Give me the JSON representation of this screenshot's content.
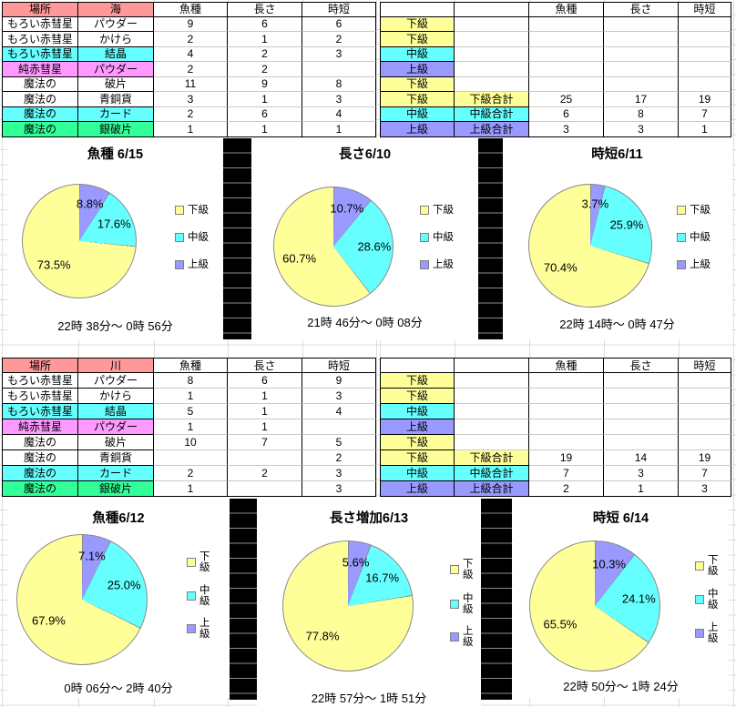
{
  "colors": {
    "pink": "#FF9999",
    "magenta": "#FF99FF",
    "cyan": "#66FFFF",
    "green": "#33FF99",
    "yellow": "#FFFF99",
    "purple": "#9999FF"
  },
  "tables": [
    {
      "place_header": "場所",
      "env_header": "海",
      "metric_headers": [
        "魚種",
        "長さ",
        "時短"
      ],
      "rows": [
        {
          "place": "もろい赤彗星",
          "item": "パウダー",
          "fill": null,
          "fish": "9",
          "len": "6",
          "time": "6",
          "grade": "下級",
          "grade_fill": "yellow"
        },
        {
          "place": "もろい赤彗星",
          "item": "かけら",
          "fill": null,
          "fish": "2",
          "len": "1",
          "time": "2",
          "grade": "下級",
          "grade_fill": "yellow"
        },
        {
          "place": "もろい赤彗星",
          "item": "結晶",
          "fill": "cyan",
          "fish": "4",
          "len": "2",
          "time": "3",
          "grade": "中級",
          "grade_fill": "cyan"
        },
        {
          "place": "純赤彗星",
          "item": "パウダー",
          "fill": "magenta",
          "fish": "2",
          "len": "2",
          "time": "",
          "grade": "上級",
          "grade_fill": "purple"
        },
        {
          "place": "魔法の",
          "item": "破片",
          "fill": null,
          "fish": "11",
          "len": "9",
          "time": "8",
          "grade": "下級",
          "grade_fill": "yellow"
        },
        {
          "place": "魔法の",
          "item": "青銅貨",
          "fill": null,
          "fish": "3",
          "len": "1",
          "time": "3",
          "grade": "下級",
          "grade_fill": "yellow",
          "total_label": "下級合計",
          "total_fill": "yellow",
          "t_fish": "25",
          "t_len": "17",
          "t_time": "19"
        },
        {
          "place": "魔法の",
          "item": "カード",
          "fill": "cyan",
          "fish": "2",
          "len": "6",
          "time": "4",
          "grade": "中級",
          "grade_fill": "cyan",
          "total_label": "中級合計",
          "total_fill": "cyan",
          "t_fish": "6",
          "t_len": "8",
          "t_time": "7"
        },
        {
          "place": "魔法の",
          "item": "銀破片",
          "fill": "green",
          "fish": "1",
          "len": "1",
          "time": "1",
          "grade": "上級",
          "grade_fill": "purple",
          "total_label": "上級合計",
          "total_fill": "purple",
          "t_fish": "3",
          "t_len": "3",
          "t_time": "1"
        }
      ]
    },
    {
      "place_header": "場所",
      "env_header": "川",
      "metric_headers": [
        "魚種",
        "長さ",
        "時短"
      ],
      "rows": [
        {
          "place": "もろい赤彗星",
          "item": "パウダー",
          "fill": null,
          "fish": "8",
          "len": "6",
          "time": "9",
          "grade": "下級",
          "grade_fill": "yellow"
        },
        {
          "place": "もろい赤彗星",
          "item": "かけら",
          "fill": null,
          "fish": "1",
          "len": "1",
          "time": "3",
          "grade": "下級",
          "grade_fill": "yellow"
        },
        {
          "place": "もろい赤彗星",
          "item": "結晶",
          "fill": "cyan",
          "fish": "5",
          "len": "1",
          "time": "4",
          "grade": "中級",
          "grade_fill": "cyan"
        },
        {
          "place": "純赤彗星",
          "item": "パウダー",
          "fill": "magenta",
          "fish": "1",
          "len": "1",
          "time": "",
          "grade": "上級",
          "grade_fill": "purple"
        },
        {
          "place": "魔法の",
          "item": "破片",
          "fill": null,
          "fish": "10",
          "len": "7",
          "time": "5",
          "grade": "下級",
          "grade_fill": "yellow"
        },
        {
          "place": "魔法の",
          "item": "青銅貨",
          "fill": null,
          "fish": "",
          "len": "",
          "time": "2",
          "grade": "下級",
          "grade_fill": "yellow",
          "total_label": "下級合計",
          "total_fill": "yellow",
          "t_fish": "19",
          "t_len": "14",
          "t_time": "19"
        },
        {
          "place": "魔法の",
          "item": "カード",
          "fill": "cyan",
          "fish": "2",
          "len": "2",
          "time": "3",
          "grade": "中級",
          "grade_fill": "cyan",
          "total_label": "中級合計",
          "total_fill": "cyan",
          "t_fish": "7",
          "t_len": "3",
          "t_time": "7"
        },
        {
          "place": "魔法の",
          "item": "銀破片",
          "fill": "green",
          "fish": "1",
          "len": "",
          "time": "3",
          "grade": "上級",
          "grade_fill": "purple",
          "total_label": "上級合計",
          "total_fill": "purple",
          "t_fish": "2",
          "t_len": "1",
          "t_time": "3"
        }
      ]
    }
  ],
  "chart_data": [
    {
      "type": "pie",
      "title": "魚種 6/15",
      "labels": [
        "下級",
        "中級",
        "上級"
      ],
      "values_pct": [
        73.5,
        17.6,
        8.8
      ],
      "labels_display": [
        "73.5%",
        "17.6%",
        "8.8%"
      ],
      "slice_colors": [
        "yellow",
        "cyan",
        "purple"
      ],
      "caption": "22時 38分～ 0時 56分",
      "legend_position": "right"
    },
    {
      "type": "pie",
      "title": "長さ6/10",
      "labels": [
        "下級",
        "中級",
        "上級"
      ],
      "values_pct": [
        60.7,
        28.6,
        10.7
      ],
      "labels_display": [
        "60.7%",
        "28.6%",
        "10.7%"
      ],
      "slice_colors": [
        "yellow",
        "cyan",
        "purple"
      ],
      "caption": "21時 46分～ 0時 08分",
      "legend_position": "right"
    },
    {
      "type": "pie",
      "title": "時短6/11",
      "labels": [
        "下級",
        "中級",
        "上級"
      ],
      "values_pct": [
        70.4,
        25.9,
        3.7
      ],
      "labels_display": [
        "70.4%",
        "25.9%",
        "3.7%"
      ],
      "slice_colors": [
        "yellow",
        "cyan",
        "purple"
      ],
      "caption": "22時 14時～ 0時 47分",
      "legend_position": "right"
    },
    {
      "type": "pie",
      "title": "魚種6/12",
      "labels": [
        "下級",
        "中級",
        "上級"
      ],
      "values_pct": [
        67.9,
        25.0,
        7.1
      ],
      "labels_display": [
        "67.9%",
        "25.0%",
        "7.1%"
      ],
      "slice_colors": [
        "yellow",
        "cyan",
        "purple"
      ],
      "caption": "0時 06分～ 2時 40分",
      "legend_position": "right"
    },
    {
      "type": "pie",
      "title": "長さ増加6/13",
      "labels": [
        "下級",
        "中級",
        "上級"
      ],
      "values_pct": [
        77.8,
        16.7,
        5.6
      ],
      "labels_display": [
        "77.8%",
        "16.7%",
        "5.6%"
      ],
      "slice_colors": [
        "yellow",
        "cyan",
        "purple"
      ],
      "caption": "22時 57分～ 1時 51分",
      "legend_position": "right"
    },
    {
      "type": "pie",
      "title": "時短 6/14",
      "labels": [
        "下級",
        "中級",
        "上級"
      ],
      "values_pct": [
        65.5,
        24.1,
        10.3
      ],
      "labels_display": [
        "65.5%",
        "24.1%",
        "10.3%"
      ],
      "slice_colors": [
        "yellow",
        "cyan",
        "purple"
      ],
      "caption": "22時 50分～ 1時 24分",
      "legend_position": "right"
    }
  ]
}
